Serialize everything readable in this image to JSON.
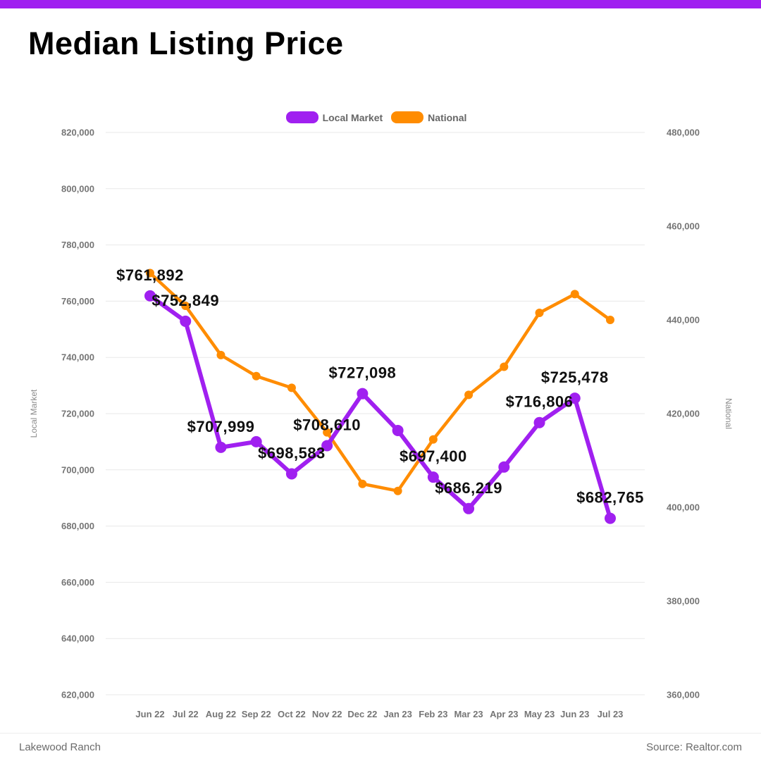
{
  "accent_color": "#a020f0",
  "header": {
    "title": "Median Listing Price"
  },
  "legend": [
    {
      "label": "Local Market",
      "color": "#a020f0"
    },
    {
      "label": "National",
      "color": "#ff8c00"
    }
  ],
  "footer": {
    "left": "Lakewood Ranch",
    "right": "Source: Realtor.com"
  },
  "chart_data": {
    "type": "line",
    "title": "Median Listing Price",
    "categories": [
      "Jun 22",
      "Jul 22",
      "Aug 22",
      "Sep 22",
      "Oct 22",
      "Nov 22",
      "Dec 22",
      "Jan 23",
      "Feb 23",
      "Mar 23",
      "Apr 23",
      "May 23",
      "Jun 23",
      "Jul 23"
    ],
    "series": [
      {
        "name": "Local Market",
        "axis": "left",
        "color": "#a020f0",
        "values": [
          761892,
          752849,
          707999,
          710000,
          698583,
          708610,
          727098,
          714000,
          697400,
          686219,
          701000,
          716806,
          725478,
          682765
        ],
        "labels": [
          "$761,892",
          "$752,849",
          "$707,999",
          null,
          "$698,583",
          "$708,610",
          "$727,098",
          null,
          "$697,400",
          "$686,219",
          null,
          "$716,806",
          "$725,478",
          "$682,765"
        ]
      },
      {
        "name": "National",
        "axis": "right",
        "color": "#ff8c00",
        "values": [
          450000,
          443000,
          432500,
          428000,
          425500,
          416000,
          405000,
          403500,
          414500,
          424000,
          430000,
          441500,
          445500,
          440000
        ],
        "labels": null
      }
    ],
    "left_axis": {
      "title": "Local Market",
      "min": 620000,
      "max": 820000,
      "step": 20000
    },
    "right_axis": {
      "title": "National",
      "min": 360000,
      "max": 480000,
      "step": 20000
    },
    "grid": "horizontal",
    "legend_position": "top-center"
  }
}
